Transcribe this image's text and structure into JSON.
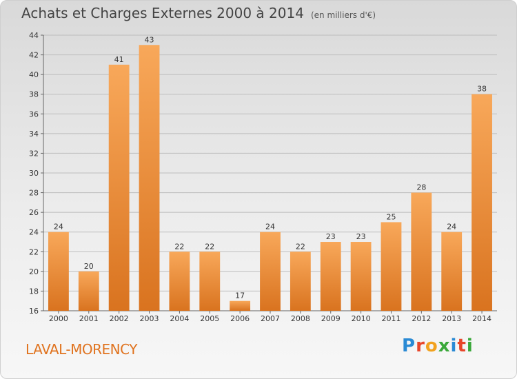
{
  "header": {
    "title": "Achats et Charges Externes 2000 à 2014",
    "unit": "(en milliers d'€)"
  },
  "footer": {
    "town": "LAVAL-MORENCY",
    "logo": "Proxiti"
  },
  "colors": {
    "bar_light": "#f8a85a",
    "bar_dark": "#d9731f",
    "town_text": "#e0731f"
  },
  "chart_data": {
    "type": "bar",
    "title": "Achats et Charges Externes 2000 à 2014",
    "subtitle": "(en milliers d'€)",
    "xlabel": "",
    "ylabel": "",
    "categories": [
      "2000",
      "2001",
      "2002",
      "2003",
      "2004",
      "2005",
      "2006",
      "2007",
      "2008",
      "2009",
      "2010",
      "2011",
      "2012",
      "2013",
      "2014"
    ],
    "values": [
      24,
      20,
      41,
      43,
      22,
      22,
      17,
      24,
      22,
      23,
      23,
      25,
      28,
      24,
      38
    ],
    "ylim": [
      16,
      44
    ],
    "yticks": [
      16,
      18,
      20,
      22,
      24,
      26,
      28,
      30,
      32,
      34,
      36,
      38,
      40,
      42,
      44
    ],
    "grid": true,
    "data_labels": true
  }
}
